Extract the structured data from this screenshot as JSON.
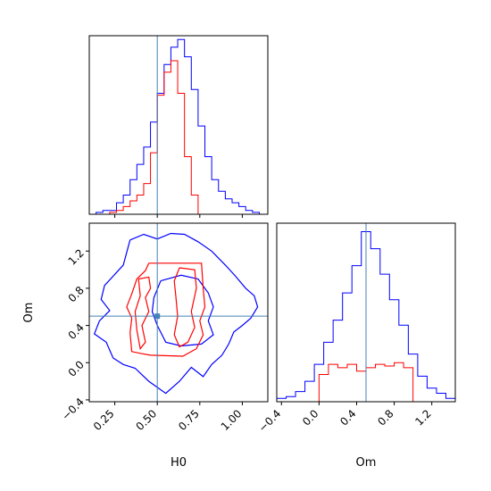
{
  "chart_data": {
    "type": "corner",
    "parameters": [
      "H0",
      "Om"
    ],
    "truth": {
      "H0": 0.5,
      "Om": 0.5
    },
    "colors": {
      "blue": "#0000ff",
      "red": "#ff0000",
      "truth": "#4682b4"
    },
    "panels": [
      {
        "id": "hist-h0",
        "type": "histogram",
        "xlim": [
          0.1,
          1.15
        ],
        "xticks": [
          0.25,
          0.5,
          0.75,
          1.0
        ],
        "xtick_labels": [
          "0.25",
          "0.50",
          "0.75",
          "1.00"
        ],
        "ymax": 93,
        "series": [
          {
            "name": "",
            "color": "#0000ff",
            "bins": [
              [
                0.1,
                0.14,
                0
              ],
              [
                0.14,
                0.18,
                1
              ],
              [
                0.18,
                0.22,
                2
              ],
              [
                0.22,
                0.26,
                2
              ],
              [
                0.26,
                0.3,
                6
              ],
              [
                0.3,
                0.34,
                10
              ],
              [
                0.34,
                0.38,
                18
              ],
              [
                0.38,
                0.42,
                26
              ],
              [
                0.42,
                0.46,
                35
              ],
              [
                0.46,
                0.5,
                48
              ],
              [
                0.5,
                0.54,
                63
              ],
              [
                0.54,
                0.58,
                78
              ],
              [
                0.58,
                0.62,
                87
              ],
              [
                0.62,
                0.66,
                91
              ],
              [
                0.66,
                0.7,
                82
              ],
              [
                0.7,
                0.74,
                65
              ],
              [
                0.74,
                0.78,
                46
              ],
              [
                0.78,
                0.82,
                30
              ],
              [
                0.82,
                0.86,
                18
              ],
              [
                0.86,
                0.9,
                12
              ],
              [
                0.9,
                0.94,
                8
              ],
              [
                0.94,
                0.98,
                6
              ],
              [
                0.98,
                1.02,
                4
              ],
              [
                1.02,
                1.06,
                2
              ],
              [
                1.06,
                1.1,
                1
              ]
            ]
          },
          {
            "name": "",
            "color": "#ff0000",
            "bins": [
              [
                0.18,
                0.22,
                0
              ],
              [
                0.22,
                0.26,
                1
              ],
              [
                0.26,
                0.3,
                2
              ],
              [
                0.3,
                0.34,
                4
              ],
              [
                0.34,
                0.38,
                7
              ],
              [
                0.38,
                0.42,
                10
              ],
              [
                0.42,
                0.46,
                16
              ],
              [
                0.46,
                0.5,
                32
              ],
              [
                0.5,
                0.54,
                62
              ],
              [
                0.54,
                0.58,
                74
              ],
              [
                0.58,
                0.62,
                80
              ],
              [
                0.62,
                0.66,
                63
              ],
              [
                0.66,
                0.7,
                30
              ],
              [
                0.7,
                0.74,
                10
              ],
              [
                0.74,
                0.78,
                0
              ]
            ]
          }
        ]
      },
      {
        "id": "scatter-h0-om",
        "type": "contour",
        "xlim": [
          0.1,
          1.15
        ],
        "ylim": [
          -0.42,
          1.5
        ],
        "xticks": [
          0.25,
          0.5,
          0.75,
          1.0
        ],
        "xtick_labels": [
          "0.25",
          "0.50",
          "0.75",
          "1.00"
        ],
        "yticks": [
          -0.4,
          0.0,
          0.4,
          0.8,
          1.2
        ],
        "ytick_labels": [
          "−0.4",
          "0.0",
          "0.4",
          "0.8",
          "1.2"
        ],
        "xlabel": "H0",
        "ylabel": "Om",
        "contours": [
          {
            "name": "",
            "color": "#0000ff",
            "points": [
              [
                0.34,
                1.32
              ],
              [
                0.42,
                1.38
              ],
              [
                0.5,
                1.33
              ],
              [
                0.58,
                1.39
              ],
              [
                0.66,
                1.38
              ],
              [
                0.74,
                1.3
              ],
              [
                0.82,
                1.2
              ],
              [
                0.9,
                1.05
              ],
              [
                0.96,
                0.93
              ],
              [
                1.02,
                0.8
              ],
              [
                1.07,
                0.72
              ],
              [
                1.09,
                0.6
              ],
              [
                1.05,
                0.48
              ],
              [
                1.0,
                0.4
              ],
              [
                0.95,
                0.33
              ],
              [
                0.92,
                0.2
              ],
              [
                0.88,
                0.08
              ],
              [
                0.82,
                -0.02
              ],
              [
                0.77,
                -0.15
              ],
              [
                0.7,
                -0.05
              ],
              [
                0.63,
                -0.2
              ],
              [
                0.55,
                -0.33
              ],
              [
                0.45,
                -0.2
              ],
              [
                0.37,
                -0.06
              ],
              [
                0.3,
                -0.02
              ],
              [
                0.24,
                0.05
              ],
              [
                0.2,
                0.22
              ],
              [
                0.13,
                0.31
              ],
              [
                0.16,
                0.45
              ],
              [
                0.22,
                0.56
              ],
              [
                0.17,
                0.68
              ],
              [
                0.19,
                0.83
              ],
              [
                0.25,
                0.95
              ],
              [
                0.3,
                1.05
              ],
              [
                0.34,
                1.32
              ]
            ]
          },
          {
            "name": "",
            "color": "#0000ff",
            "points": [
              [
                0.52,
                0.88
              ],
              [
                0.64,
                0.94
              ],
              [
                0.74,
                0.9
              ],
              [
                0.8,
                0.75
              ],
              [
                0.83,
                0.6
              ],
              [
                0.8,
                0.45
              ],
              [
                0.83,
                0.3
              ],
              [
                0.76,
                0.2
              ],
              [
                0.64,
                0.18
              ],
              [
                0.55,
                0.22
              ],
              [
                0.5,
                0.4
              ],
              [
                0.47,
                0.55
              ],
              [
                0.48,
                0.7
              ],
              [
                0.52,
                0.88
              ]
            ]
          },
          {
            "name": "",
            "color": "#ff0000",
            "points": [
              [
                0.45,
                1.07
              ],
              [
                0.76,
                1.07
              ],
              [
                0.77,
                0.8
              ],
              [
                0.78,
                0.6
              ],
              [
                0.75,
                0.45
              ],
              [
                0.77,
                0.3
              ],
              [
                0.73,
                0.15
              ],
              [
                0.65,
                0.07
              ],
              [
                0.46,
                0.08
              ],
              [
                0.4,
                0.1
              ],
              [
                0.35,
                0.12
              ],
              [
                0.34,
                0.32
              ],
              [
                0.35,
                0.48
              ],
              [
                0.32,
                0.6
              ],
              [
                0.35,
                0.74
              ],
              [
                0.38,
                0.9
              ],
              [
                0.43,
                0.99
              ],
              [
                0.45,
                1.07
              ]
            ]
          },
          {
            "name": "",
            "color": "#ff0000",
            "points": [
              [
                0.63,
                1.02
              ],
              [
                0.72,
                1.0
              ],
              [
                0.73,
                0.8
              ],
              [
                0.7,
                0.55
              ],
              [
                0.72,
                0.38
              ],
              [
                0.68,
                0.22
              ],
              [
                0.63,
                0.17
              ],
              [
                0.6,
                0.3
              ],
              [
                0.62,
                0.5
              ],
              [
                0.61,
                0.7
              ],
              [
                0.6,
                0.88
              ],
              [
                0.63,
                1.02
              ]
            ]
          },
          {
            "name": "",
            "color": "#ff0000",
            "points": [
              [
                0.39,
                0.9
              ],
              [
                0.45,
                0.92
              ],
              [
                0.46,
                0.8
              ],
              [
                0.43,
                0.7
              ],
              [
                0.45,
                0.55
              ],
              [
                0.41,
                0.4
              ],
              [
                0.43,
                0.22
              ],
              [
                0.4,
                0.15
              ],
              [
                0.38,
                0.35
              ],
              [
                0.37,
                0.55
              ],
              [
                0.4,
                0.72
              ],
              [
                0.39,
                0.9
              ]
            ]
          }
        ]
      },
      {
        "id": "hist-om",
        "type": "histogram",
        "xlim": [
          -0.45,
          1.45
        ],
        "xticks": [
          -0.4,
          0.0,
          0.4,
          0.8,
          1.2
        ],
        "xtick_labels": [
          "−0.4",
          "0.0",
          "0.4",
          "0.8",
          "1.2"
        ],
        "xlabel": "Om",
        "ymax": 105,
        "series": [
          {
            "name": "",
            "color": "#0000ff",
            "bins": [
              [
                -0.45,
                -0.35,
                2
              ],
              [
                -0.35,
                -0.25,
                3
              ],
              [
                -0.25,
                -0.15,
                6
              ],
              [
                -0.15,
                -0.05,
                12
              ],
              [
                -0.05,
                0.05,
                22
              ],
              [
                0.05,
                0.15,
                35
              ],
              [
                0.15,
                0.25,
                48
              ],
              [
                0.25,
                0.35,
                64
              ],
              [
                0.35,
                0.45,
                80
              ],
              [
                0.45,
                0.55,
                100
              ],
              [
                0.55,
                0.65,
                90
              ],
              [
                0.65,
                0.75,
                75
              ],
              [
                0.75,
                0.85,
                60
              ],
              [
                0.85,
                0.95,
                45
              ],
              [
                0.95,
                1.05,
                28
              ],
              [
                1.05,
                1.15,
                15
              ],
              [
                1.15,
                1.25,
                8
              ],
              [
                1.25,
                1.35,
                5
              ],
              [
                1.35,
                1.45,
                2
              ]
            ]
          },
          {
            "name": "",
            "color": "#ff0000",
            "bins": [
              [
                0.0,
                0.1,
                16
              ],
              [
                0.1,
                0.2,
                22
              ],
              [
                0.2,
                0.3,
                20
              ],
              [
                0.3,
                0.4,
                22
              ],
              [
                0.4,
                0.5,
                18
              ],
              [
                0.5,
                0.6,
                20
              ],
              [
                0.6,
                0.7,
                22
              ],
              [
                0.7,
                0.8,
                21
              ],
              [
                0.8,
                0.9,
                23
              ],
              [
                0.9,
                1.0,
                20
              ]
            ]
          }
        ]
      }
    ]
  }
}
